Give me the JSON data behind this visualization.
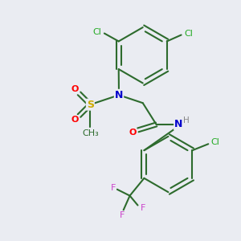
{
  "bg_color": "#eaecf2",
  "bond_color": "#2d6b2d",
  "atom_colors": {
    "N": "#0000cc",
    "O": "#ff0000",
    "S": "#ccaa00",
    "Cl": "#22aa22",
    "F": "#cc44cc",
    "H": "#888888",
    "C": "#2d6b2d"
  },
  "figsize": [
    3.0,
    3.0
  ],
  "dpi": 100
}
